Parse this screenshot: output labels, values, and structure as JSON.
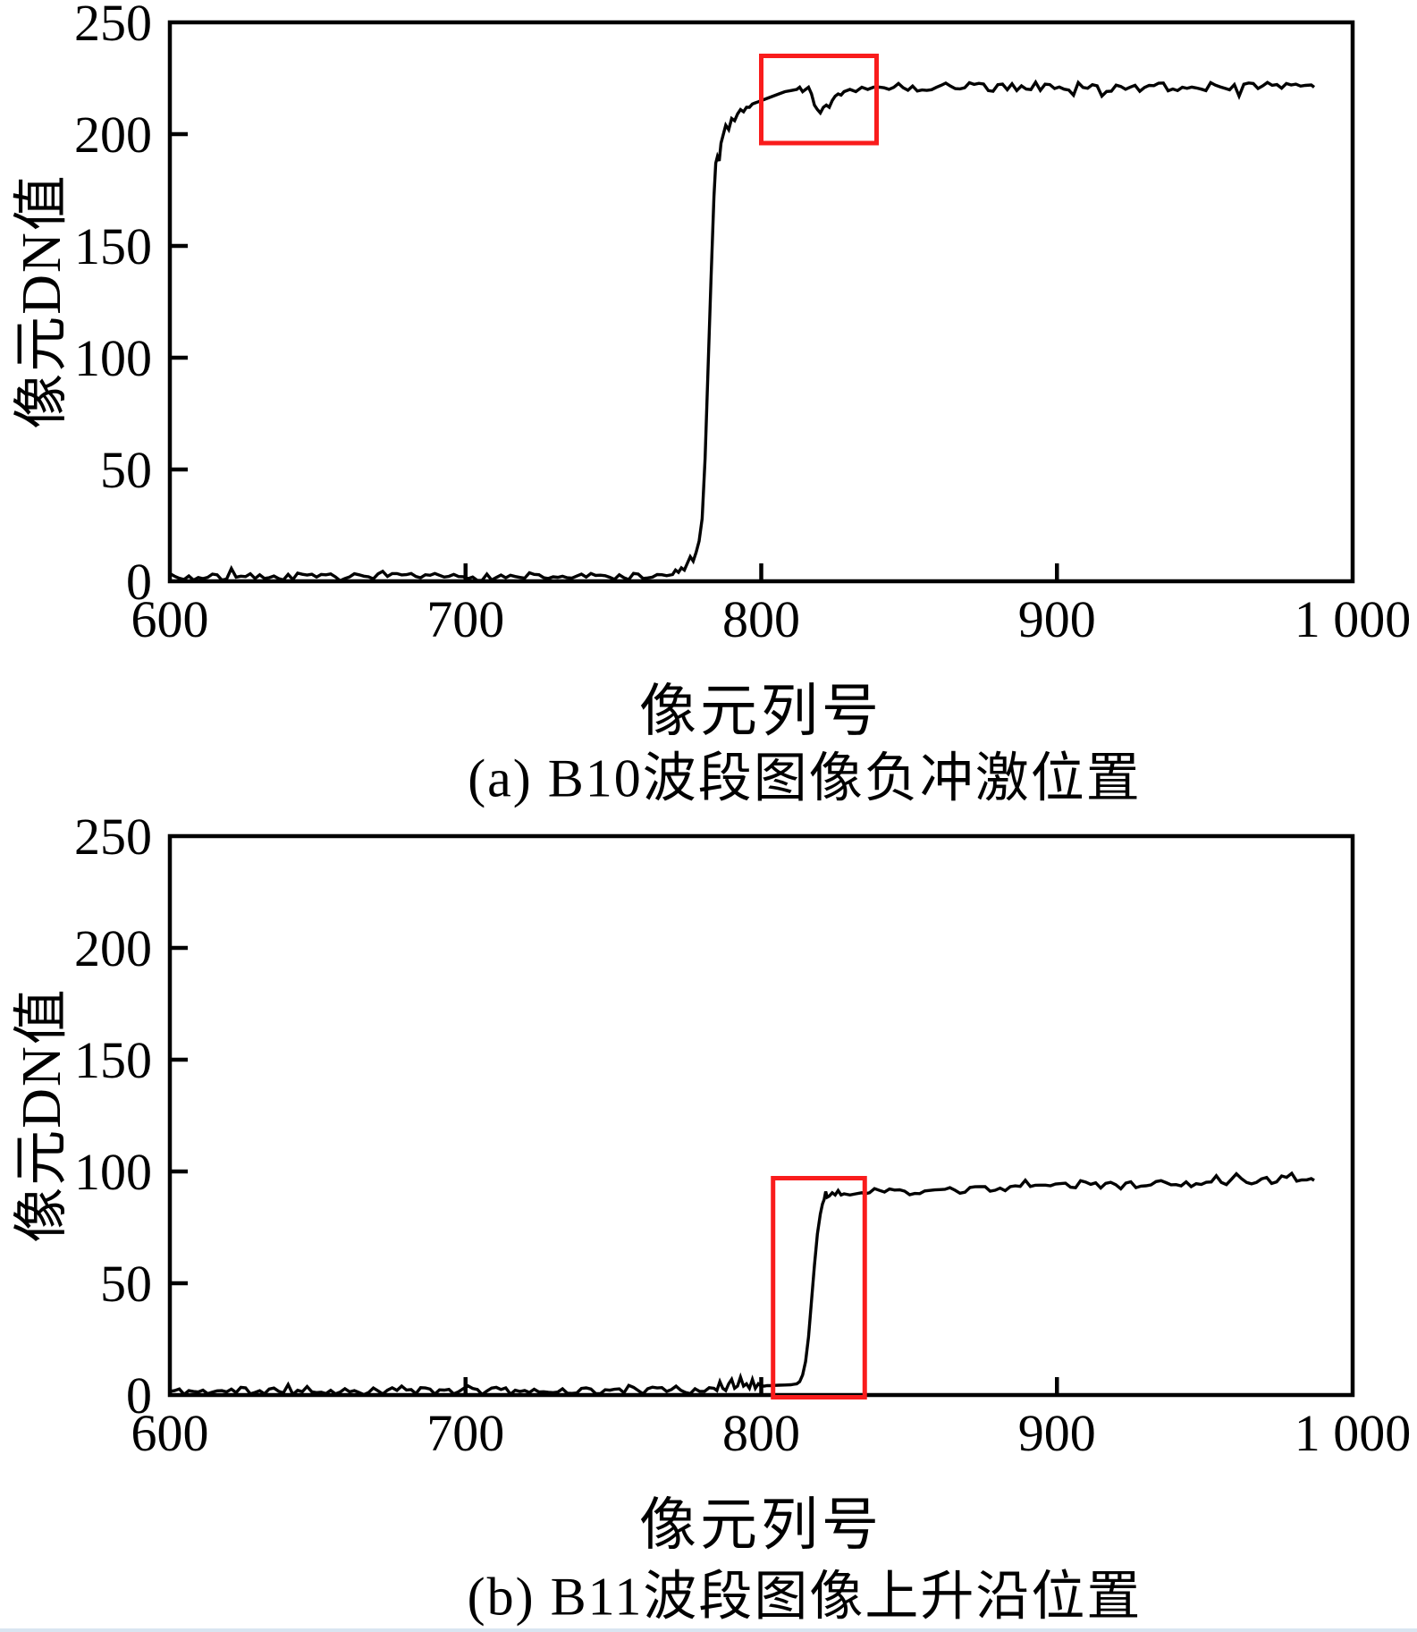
{
  "figure": {
    "background": "#ffffff",
    "bottom_strip_color": "#d9e5f1",
    "axis_color": "#000000",
    "highlight_color": "#f91c1c"
  },
  "labels": {
    "ylabel_a": "像元DN值",
    "ylabel_b": "像元DN值",
    "xlabel_a": "像元列号",
    "xlabel_b": "像元列号",
    "caption_a": "(a) B10波段图像负冲激位置",
    "caption_b": "(b) B11波段图像上升沿位置"
  },
  "chart_data": [
    {
      "id": "a",
      "type": "line",
      "title": "(a) B10波段图像负冲激位置",
      "xlabel": "像元列号",
      "ylabel": "像元DN值",
      "xlim": [
        600,
        1000
      ],
      "ylim": [
        0,
        250
      ],
      "x_ticks": [
        {
          "v": 600,
          "label": "600"
        },
        {
          "v": 700,
          "label": "700"
        },
        {
          "v": 800,
          "label": "800"
        },
        {
          "v": 900,
          "label": "900"
        },
        {
          "v": 1000,
          "label": "1 000"
        }
      ],
      "y_ticks": [
        {
          "v": 0,
          "label": "0"
        },
        {
          "v": 50,
          "label": "50"
        },
        {
          "v": 100,
          "label": "100"
        },
        {
          "v": 150,
          "label": "150"
        },
        {
          "v": 200,
          "label": "200"
        },
        {
          "v": 250,
          "label": "250"
        }
      ],
      "grid": false,
      "legend": "none",
      "line_color": "#000000",
      "annotation_box": {
        "x0": 800,
        "x1": 839,
        "y0": 196,
        "y1": 235,
        "color": "#f91c1c",
        "meaning": "负冲激位置"
      },
      "features": {
        "baseline_level": 2,
        "rising_edge_x": [
          778,
          786
        ],
        "plateau_level": 221,
        "negative_impulse_x": 819,
        "negative_impulse_depth": 209.5
      },
      "segments": [
        {
          "type": "noise",
          "x0": 600,
          "x1": 769,
          "step": 1.6,
          "base": 1.6,
          "base_end": 2.2,
          "amp": 1.6,
          "spike_p": 0.1,
          "spike": 3.5,
          "floor": 0.2,
          "seed": 7
        },
        {
          "type": "points",
          "pts": [
            [
              770,
              3
            ],
            [
              771,
              5
            ],
            [
              772,
              4
            ],
            [
              773,
              6
            ],
            [
              774,
              5
            ],
            [
              775,
              8
            ],
            [
              776,
              11
            ],
            [
              777,
              9
            ],
            [
              778,
              13
            ],
            [
              779,
              18
            ],
            [
              780,
              28
            ],
            [
              781,
              55
            ],
            [
              782,
              95
            ],
            [
              783,
              135
            ],
            [
              784,
              172
            ],
            [
              784.6,
              187
            ],
            [
              785.2,
              190
            ],
            [
              785.8,
              188
            ],
            [
              786.4,
              196
            ],
            [
              787,
              199
            ],
            [
              788,
              204
            ],
            [
              789,
              202
            ],
            [
              790,
              207
            ],
            [
              791,
              206
            ],
            [
              792,
              209
            ],
            [
              793,
              211
            ],
            [
              794,
              210
            ],
            [
              795,
              212
            ],
            [
              796,
              212
            ],
            [
              797,
              213.5
            ],
            [
              798,
              214
            ],
            [
              799,
              214.5
            ],
            [
              800,
              215
            ],
            [
              802,
              216
            ],
            [
              804,
              217
            ],
            [
              806,
              218
            ],
            [
              808,
              219
            ],
            [
              810,
              219.5
            ],
            [
              812,
              220
            ],
            [
              813,
              221
            ],
            [
              814,
              219
            ],
            [
              815,
              220
            ],
            [
              816,
              221
            ],
            [
              817,
              218
            ],
            [
              818,
              213
            ],
            [
              819,
              211
            ],
            [
              820,
              209.5
            ],
            [
              821,
              212
            ],
            [
              822,
              213
            ],
            [
              823,
              212
            ],
            [
              824,
              215
            ],
            [
              825,
              217
            ],
            [
              826,
              218
            ],
            [
              827,
              217.5
            ],
            [
              828,
              219
            ],
            [
              830,
              220
            ],
            [
              832,
              219
            ],
            [
              834,
              221
            ],
            [
              836,
              220
            ],
            [
              838,
              221
            ],
            [
              840,
              221
            ]
          ]
        },
        {
          "type": "noise",
          "x0": 841.6,
          "x1": 985,
          "step": 1.6,
          "base": 221,
          "base_end": 221.5,
          "amp": 2.2,
          "spike_p": 0.07,
          "spike": -6,
          "floor": 0.2,
          "seed": 21
        },
        {
          "type": "points",
          "pts": [
            [
              986,
              222
            ],
            [
              987,
              221
            ]
          ]
        }
      ]
    },
    {
      "id": "b",
      "type": "line",
      "title": "(b) B11波段图像上升沿位置",
      "xlabel": "像元列号",
      "ylabel": "像元DN值",
      "xlim": [
        600,
        1000
      ],
      "ylim": [
        0,
        250
      ],
      "x_ticks": [
        {
          "v": 600,
          "label": "600"
        },
        {
          "v": 700,
          "label": "700"
        },
        {
          "v": 800,
          "label": "800"
        },
        {
          "v": 900,
          "label": "900"
        },
        {
          "v": 1000,
          "label": "1 000"
        }
      ],
      "y_ticks": [
        {
          "v": 0,
          "label": "0"
        },
        {
          "v": 50,
          "label": "50"
        },
        {
          "v": 100,
          "label": "100"
        },
        {
          "v": 150,
          "label": "150"
        },
        {
          "v": 200,
          "label": "200"
        },
        {
          "v": 250,
          "label": "250"
        }
      ],
      "grid": false,
      "legend": "none",
      "line_color": "#000000",
      "annotation_box": {
        "x0": 804,
        "x1": 835,
        "y0": -1,
        "y1": 97,
        "color": "#f91c1c",
        "meaning": "上升沿位置"
      },
      "features": {
        "baseline_level": 2,
        "low_shelf": {
          "x0": 801,
          "x1": 812,
          "level": 4.5
        },
        "rising_edge_x": [
          813,
          821
        ],
        "plateau_level_start": 90,
        "plateau_level_end": 96.5
      },
      "segments": [
        {
          "type": "noise",
          "x0": 600,
          "x1": 783,
          "step": 1.6,
          "base": 1.6,
          "base_end": 2.0,
          "amp": 1.6,
          "spike_p": 0.1,
          "spike": 3.5,
          "floor": 0.2,
          "seed": 11
        },
        {
          "type": "points",
          "pts": [
            [
              784,
              3
            ],
            [
              785,
              2
            ],
            [
              786,
              6
            ],
            [
              787,
              3
            ],
            [
              788,
              2
            ],
            [
              789,
              5
            ],
            [
              790,
              7
            ],
            [
              791,
              3
            ],
            [
              792,
              4
            ],
            [
              793,
              8
            ],
            [
              794,
              4
            ],
            [
              795,
              5
            ],
            [
              796,
              3
            ],
            [
              797,
              7
            ],
            [
              798,
              3
            ],
            [
              799,
              5
            ],
            [
              800,
              4
            ],
            [
              801,
              4
            ],
            [
              802,
              4.2
            ],
            [
              803,
              4.2
            ],
            [
              804,
              4.3
            ],
            [
              806,
              4.4
            ],
            [
              808,
              4.5
            ],
            [
              810,
              4.6
            ],
            [
              811,
              4.8
            ],
            [
              812,
              5
            ],
            [
              813,
              6
            ],
            [
              814,
              9
            ],
            [
              815,
              15
            ],
            [
              816,
              26
            ],
            [
              817,
              42
            ],
            [
              818,
              58
            ],
            [
              819,
              72
            ],
            [
              820,
              81
            ],
            [
              820.7,
              85.5
            ],
            [
              821.3,
              87.5
            ],
            [
              821.8,
              91
            ],
            [
              822.3,
              88.5
            ],
            [
              823,
              89
            ],
            [
              824,
              90.5
            ],
            [
              825,
              89.5
            ],
            [
              826,
              91.5
            ],
            [
              827,
              89.5
            ],
            [
              828,
              90
            ],
            [
              830,
              89.5
            ],
            [
              832,
              90
            ],
            [
              834,
              90.5
            ],
            [
              835,
              90
            ]
          ]
        },
        {
          "type": "noise",
          "x0": 836.6,
          "x1": 985,
          "step": 1.7,
          "base": 90.3,
          "base_end": 96.3,
          "amp": 1.7,
          "spike_p": 0.07,
          "spike": 3.5,
          "floor": 0.2,
          "seed": 33
        },
        {
          "type": "points",
          "pts": [
            [
              986,
              96.8
            ],
            [
              987,
              96
            ]
          ]
        }
      ]
    }
  ]
}
